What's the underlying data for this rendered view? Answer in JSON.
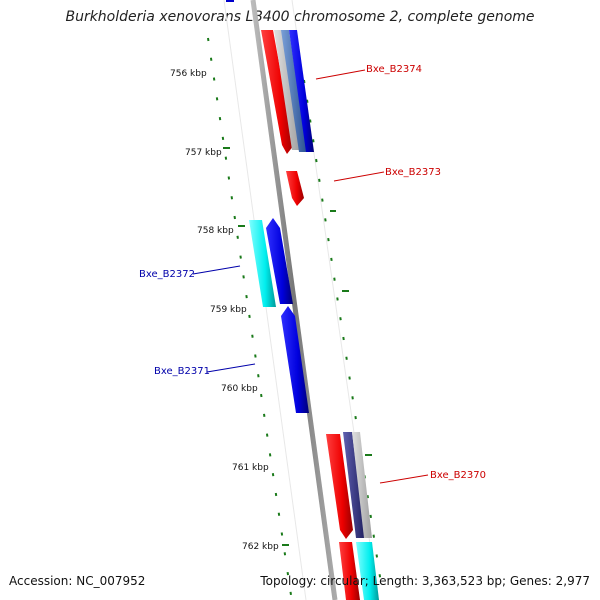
{
  "title": "Burkholderia xenovorans LB400 chromosome 2, complete genome",
  "accession": "Accession: NC_007952",
  "topology": "Topology: circular; Length: 3,363,523 bp; Genes: 2,977",
  "kbp_labels": [
    "756 kbp",
    "757 kbp",
    "758 kbp",
    "759 kbp",
    "760 kbp",
    "761 kbp",
    "762 kbp"
  ],
  "gene_labels": [
    {
      "name": "Bxe_B2374",
      "color": "#cc0000"
    },
    {
      "name": "Bxe_B2373",
      "color": "#cc0000"
    },
    {
      "name": "Bxe_B2372",
      "color": "#0000aa"
    },
    {
      "name": "Bxe_B2371",
      "color": "#0000aa"
    },
    {
      "name": "Bxe_B2370",
      "color": "#cc0000"
    }
  ],
  "colors": {
    "forward_cds": "#ff0000",
    "reverse_cds": "#0000ee",
    "rna_forward": "#00e5e5",
    "rna_steel": "#4a78b8",
    "rna_navy": "#3a3a88",
    "gc_marks": "#1a7a1a",
    "backbone": "#888888"
  }
}
